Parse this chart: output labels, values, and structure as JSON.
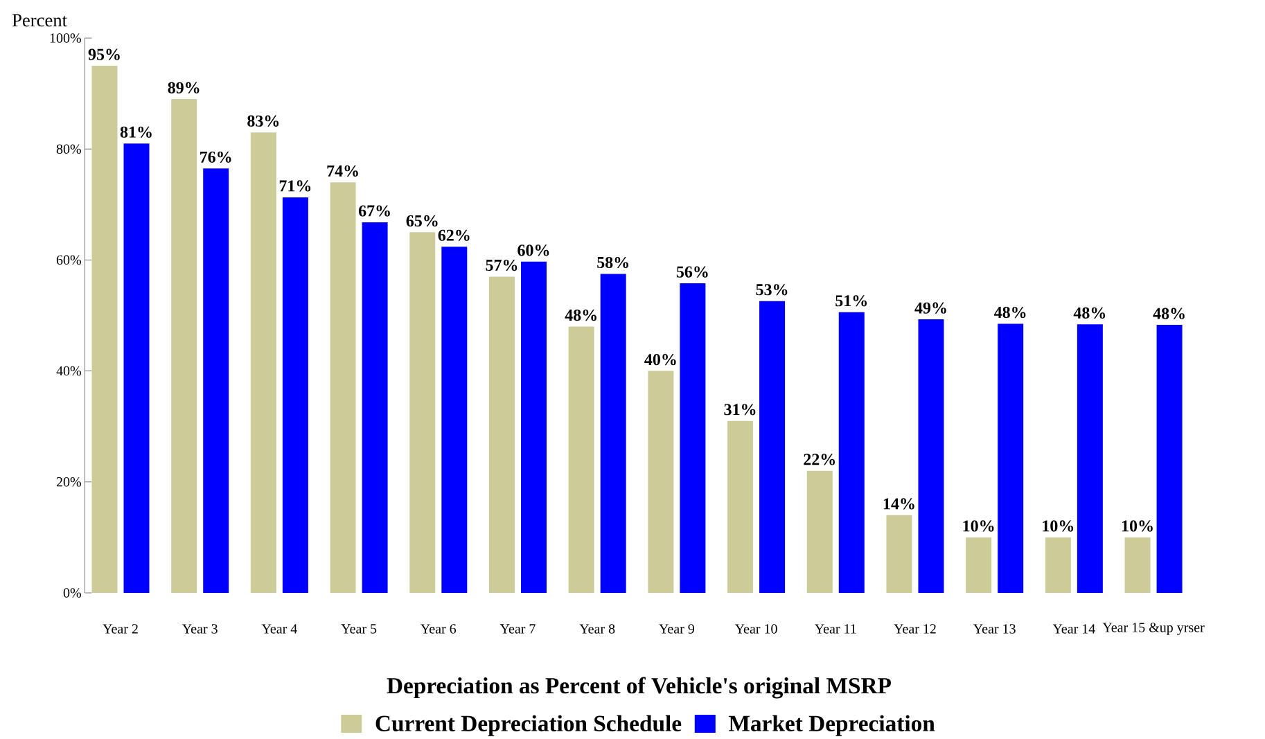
{
  "chart_data": {
    "type": "bar",
    "title": "Depreciation as Percent of Vehicle's original MSRP",
    "ylabel": "Percent",
    "categories": [
      "Year 2",
      "Year 3",
      "Year 4",
      "Year 5",
      "Year 6",
      "Year 7",
      "Year 8",
      "Year 9",
      "Year 10",
      "Year 11",
      "Year 12",
      "Year 13",
      "Year 14",
      "Year 15 &up yrser"
    ],
    "series": [
      {
        "name": "Current Depreciation Schedule",
        "color": "#cccc99",
        "values": [
          95,
          89,
          83,
          74,
          65,
          57,
          48,
          40,
          31,
          22,
          14,
          10,
          10,
          10
        ],
        "value_labels": [
          "95%",
          "89%",
          "83%",
          "74%",
          "65%",
          "57%",
          "48%",
          "40%",
          "31%",
          "22%",
          "14%",
          "10%",
          "10%",
          "10%"
        ]
      },
      {
        "name": "Market Depreciation",
        "color": "#0000ff",
        "values": [
          81,
          76.5,
          71.3,
          66.8,
          62.4,
          59.7,
          57.5,
          55.8,
          52.6,
          50.6,
          49.3,
          48.5,
          48.4,
          48.3
        ],
        "value_labels": [
          "81%",
          "76%",
          "71%",
          "67%",
          "62%",
          "60%",
          "58%",
          "56%",
          "53%",
          "51%",
          "49%",
          "48%",
          "48%",
          "48%"
        ]
      }
    ],
    "ylim": [
      0,
      100
    ],
    "yticks": [
      {
        "value": 0,
        "label": "0%"
      },
      {
        "value": 20,
        "label": "20%"
      },
      {
        "value": 40,
        "label": "40%"
      },
      {
        "value": 60,
        "label": "60%"
      },
      {
        "value": 80,
        "label": "80%"
      },
      {
        "value": 100,
        "label": "100%"
      }
    ],
    "legend": "bottom"
  }
}
